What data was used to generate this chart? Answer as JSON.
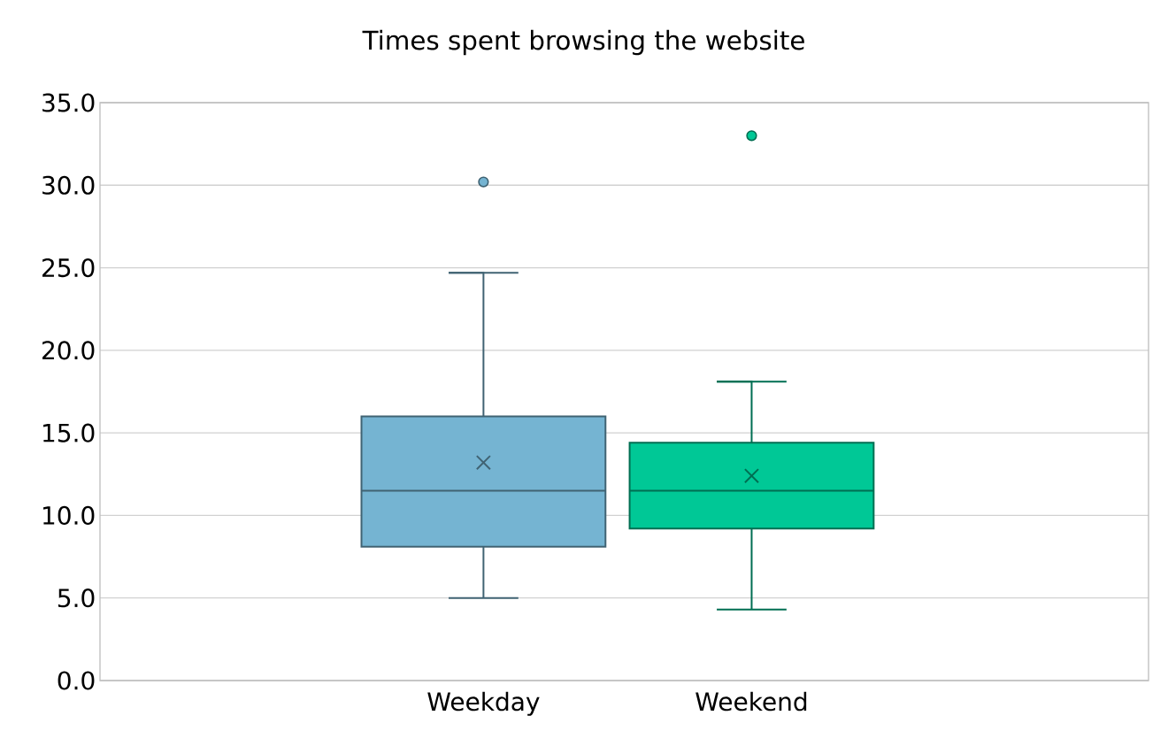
{
  "chart_data": {
    "type": "box",
    "title": "Times spent browsing the website",
    "categories": [
      "Weekday",
      "Weekend"
    ],
    "colors": [
      "#75b4d2",
      "#00c896"
    ],
    "boxes": [
      {
        "low": 5.0,
        "q1": 8.1,
        "median": 11.5,
        "q3": 16.0,
        "high": 24.7,
        "mean": 13.2,
        "outliers": [
          30.2
        ]
      },
      {
        "low": 4.3,
        "q1": 9.2,
        "median": 11.5,
        "q3": 14.4,
        "high": 18.1,
        "mean": 12.4,
        "outliers": [
          33.0
        ]
      }
    ],
    "ylim": [
      0,
      35
    ],
    "yticks": [
      {
        "value": 0,
        "label": "0.0"
      },
      {
        "value": 5,
        "label": "5.0"
      },
      {
        "value": 10,
        "label": "10.0"
      },
      {
        "value": 15,
        "label": "15.0"
      },
      {
        "value": 20,
        "label": "20.0"
      },
      {
        "value": 25,
        "label": "25.0"
      },
      {
        "value": 30,
        "label": "30.0"
      },
      {
        "value": 35,
        "label": "35.0"
      }
    ],
    "grid": "y"
  }
}
